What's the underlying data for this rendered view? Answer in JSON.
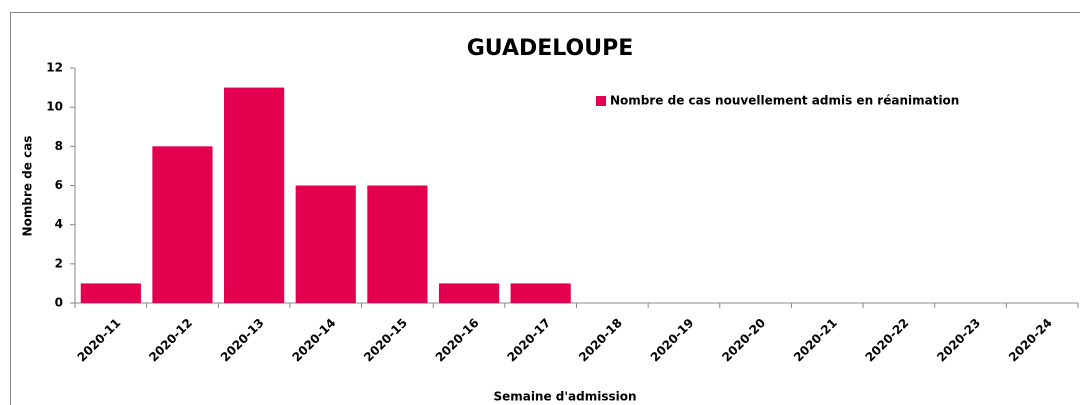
{
  "chart_data": {
    "type": "bar",
    "title": "GUADELOUPE",
    "x_label": "Semaine d'admission",
    "y_label": "Nombre de cas",
    "categories": [
      "2020-11",
      "2020-12",
      "2020-13",
      "2020-14",
      "2020-15",
      "2020-16",
      "2020-17",
      "2020-18",
      "2020-19",
      "2020-20",
      "2020-21",
      "2020-22",
      "2020-23",
      "2020-24"
    ],
    "series": [
      {
        "name": "Nombre de cas nouvellement admis en réanimation",
        "color": "#e2004f",
        "values": [
          1,
          8,
          11,
          6,
          6,
          1,
          1,
          0,
          0,
          0,
          0,
          0,
          0,
          0
        ]
      }
    ],
    "ylim": [
      0,
      12
    ],
    "yticks": [
      0,
      2,
      4,
      6,
      8,
      10,
      12
    ],
    "grid": false,
    "legend": "top-right"
  }
}
